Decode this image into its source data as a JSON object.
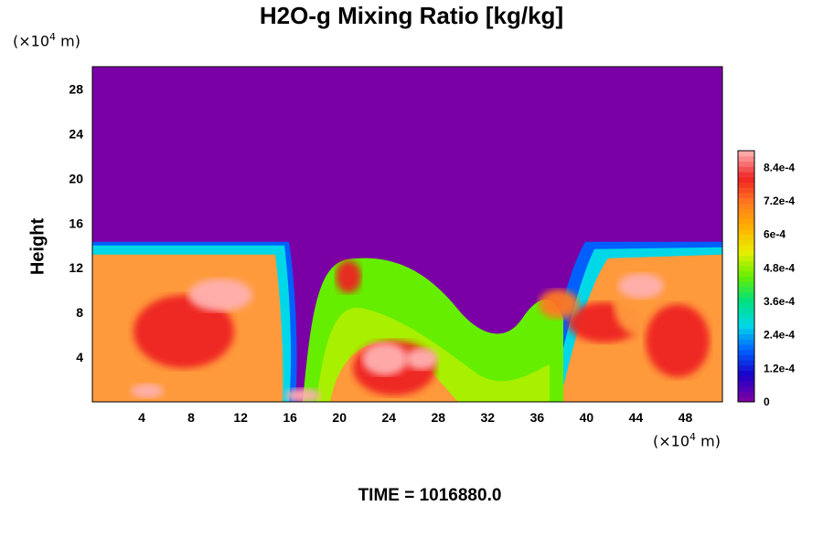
{
  "chart_data": {
    "type": "heatmap",
    "title": "H2O-g Mixing Ratio [kg/kg]",
    "ylabel": "Height",
    "xlabel": "",
    "x_unit": "(×10⁴ m)",
    "y_unit": "(×10⁴ m)",
    "x_ticks": [
      4,
      8,
      12,
      16,
      20,
      24,
      28,
      32,
      36,
      40,
      44,
      48
    ],
    "y_ticks": [
      4,
      8,
      12,
      16,
      20,
      24,
      28
    ],
    "xlim": [
      0,
      51
    ],
    "ylim": [
      0,
      30
    ],
    "colorbar": {
      "labels": [
        "8.4e-4",
        "7.2e-4",
        "6e-4",
        "4.8e-4",
        "3.6e-4",
        "2.4e-4",
        "1.2e-4",
        "0"
      ],
      "label_values": [
        0.00084,
        0.00072,
        0.0006,
        0.00048,
        0.00036,
        0.00024,
        0.00012,
        0
      ],
      "range": [
        0,
        0.0009
      ],
      "colors": [
        "#7a00a6",
        "#1a00c8",
        "#0060ff",
        "#00d8e8",
        "#00e080",
        "#66ee00",
        "#e8f000",
        "#ffb000",
        "#ff7a20",
        "#ee2222",
        "#ffa8a8"
      ]
    },
    "background_color": "#7a00a6",
    "field_top_height": 14,
    "moist_layer_colors": [
      "#ff9a3c",
      "#ff7a20",
      "#ee2222",
      "#ffb0b0",
      "#66ee00",
      "#00d8e8",
      "#0060ff"
    ]
  },
  "footer": {
    "time_label": "TIME = 1016880.0"
  }
}
